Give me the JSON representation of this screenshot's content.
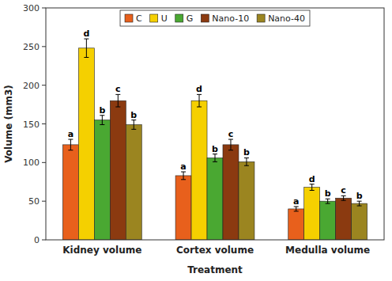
{
  "chart_data": {
    "type": "bar",
    "xlabel": "Treatment",
    "ylabel": "Volume (mm3)",
    "categories": [
      "Kidney volume",
      "Cortex volume",
      "Medulla volume"
    ],
    "series": [
      {
        "name": "C",
        "color": "#E8601C",
        "values": [
          123,
          83,
          40
        ],
        "errors": [
          7,
          5,
          3
        ],
        "sig_labels": [
          "a",
          "a",
          "a"
        ]
      },
      {
        "name": "U",
        "color": "#F5D000",
        "values": [
          248,
          180,
          68
        ],
        "errors": [
          12,
          8,
          4
        ],
        "sig_labels": [
          "d",
          "d",
          "d"
        ]
      },
      {
        "name": "G",
        "color": "#4AA832",
        "values": [
          155,
          106,
          50
        ],
        "errors": [
          6,
          5,
          3
        ],
        "sig_labels": [
          "b",
          "b",
          "b"
        ]
      },
      {
        "name": "Nano-10",
        "color": "#8B3A10",
        "values": [
          180,
          123,
          54
        ],
        "errors": [
          8,
          7,
          3
        ],
        "sig_labels": [
          "c",
          "c",
          "c"
        ]
      },
      {
        "name": "Nano-40",
        "color": "#9B8520",
        "values": [
          149,
          101,
          47
        ],
        "errors": [
          6,
          5,
          3
        ],
        "sig_labels": [
          "b",
          "b",
          "b"
        ]
      }
    ],
    "ylim": [
      0,
      300
    ],
    "yticks": [
      0,
      50,
      100,
      150,
      200,
      250,
      300
    ],
    "legend": "top",
    "grid": false
  }
}
